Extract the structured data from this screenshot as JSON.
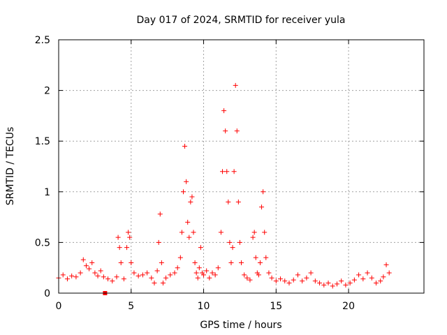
{
  "chart_data": {
    "type": "scatter",
    "title": "Day 017 of 2024, SRMTID for receiver yula",
    "xlabel": "GPS time / hours",
    "ylabel": "SRMTID / TECUs",
    "xlim": [
      0,
      25.2
    ],
    "ylim": [
      0,
      2.5
    ],
    "xticks": [
      0,
      5,
      10,
      15,
      20
    ],
    "xtick_labels": [
      "0",
      "5",
      "10",
      "15",
      "20"
    ],
    "yticks": [
      0,
      0.5,
      1,
      1.5,
      2,
      2.5
    ],
    "ytick_labels": [
      "0",
      "0.5",
      "1",
      "1.5",
      "2",
      "2.5"
    ],
    "grid": true,
    "marker": "+",
    "color": "#ff0000",
    "outlier": {
      "x": 3.2,
      "y": 0.0,
      "marker": "filled-square"
    },
    "series": [
      {
        "name": "SRMTID",
        "x": [
          0.0,
          0.3,
          0.6,
          0.9,
          1.2,
          1.5,
          1.7,
          1.9,
          2.1,
          2.3,
          2.5,
          2.7,
          2.9,
          3.1,
          3.4,
          3.7,
          4.0,
          4.1,
          4.2,
          4.3,
          4.5,
          4.7,
          4.8,
          4.9,
          5.0,
          5.2,
          5.5,
          5.8,
          6.1,
          6.4,
          6.6,
          6.8,
          6.9,
          7.0,
          7.1,
          7.2,
          7.4,
          7.7,
          8.0,
          8.2,
          8.4,
          8.5,
          8.6,
          8.7,
          8.8,
          8.9,
          9.0,
          9.1,
          9.2,
          9.3,
          9.4,
          9.5,
          9.6,
          9.7,
          9.8,
          9.9,
          10.0,
          10.2,
          10.4,
          10.6,
          10.8,
          11.0,
          11.2,
          11.3,
          11.4,
          11.5,
          11.6,
          11.7,
          11.8,
          11.9,
          12.0,
          12.1,
          12.2,
          12.3,
          12.4,
          12.5,
          12.6,
          12.8,
          13.0,
          13.2,
          13.4,
          13.5,
          13.6,
          13.7,
          13.8,
          13.9,
          14.0,
          14.1,
          14.2,
          14.3,
          14.5,
          14.7,
          15.0,
          15.3,
          15.6,
          15.9,
          16.2,
          16.5,
          16.8,
          17.1,
          17.4,
          17.7,
          18.0,
          18.3,
          18.6,
          18.9,
          19.2,
          19.5,
          19.8,
          20.1,
          20.4,
          20.7,
          21.0,
          21.3,
          21.6,
          21.9,
          22.2,
          22.4,
          22.6,
          22.8
        ],
        "y": [
          0.15,
          0.18,
          0.14,
          0.17,
          0.16,
          0.2,
          0.33,
          0.27,
          0.24,
          0.3,
          0.2,
          0.17,
          0.22,
          0.16,
          0.14,
          0.12,
          0.16,
          0.55,
          0.45,
          0.3,
          0.14,
          0.45,
          0.6,
          0.55,
          0.3,
          0.2,
          0.17,
          0.18,
          0.2,
          0.15,
          0.1,
          0.22,
          0.5,
          0.78,
          0.3,
          0.1,
          0.15,
          0.18,
          0.2,
          0.25,
          0.35,
          0.6,
          1.0,
          1.45,
          1.1,
          0.7,
          0.55,
          0.9,
          0.95,
          0.6,
          0.3,
          0.2,
          0.15,
          0.25,
          0.45,
          0.2,
          0.18,
          0.22,
          0.15,
          0.2,
          0.18,
          0.25,
          0.6,
          1.2,
          1.8,
          1.6,
          1.2,
          0.9,
          0.5,
          0.3,
          0.45,
          1.2,
          2.05,
          1.6,
          0.9,
          0.5,
          0.3,
          0.18,
          0.15,
          0.13,
          0.55,
          0.6,
          0.35,
          0.2,
          0.18,
          0.3,
          0.85,
          1.0,
          0.6,
          0.35,
          0.2,
          0.15,
          0.12,
          0.14,
          0.12,
          0.1,
          0.13,
          0.18,
          0.12,
          0.15,
          0.2,
          0.12,
          0.1,
          0.08,
          0.1,
          0.07,
          0.09,
          0.12,
          0.08,
          0.1,
          0.13,
          0.18,
          0.14,
          0.2,
          0.15,
          0.1,
          0.12,
          0.16,
          0.28,
          0.2
        ]
      }
    ]
  }
}
